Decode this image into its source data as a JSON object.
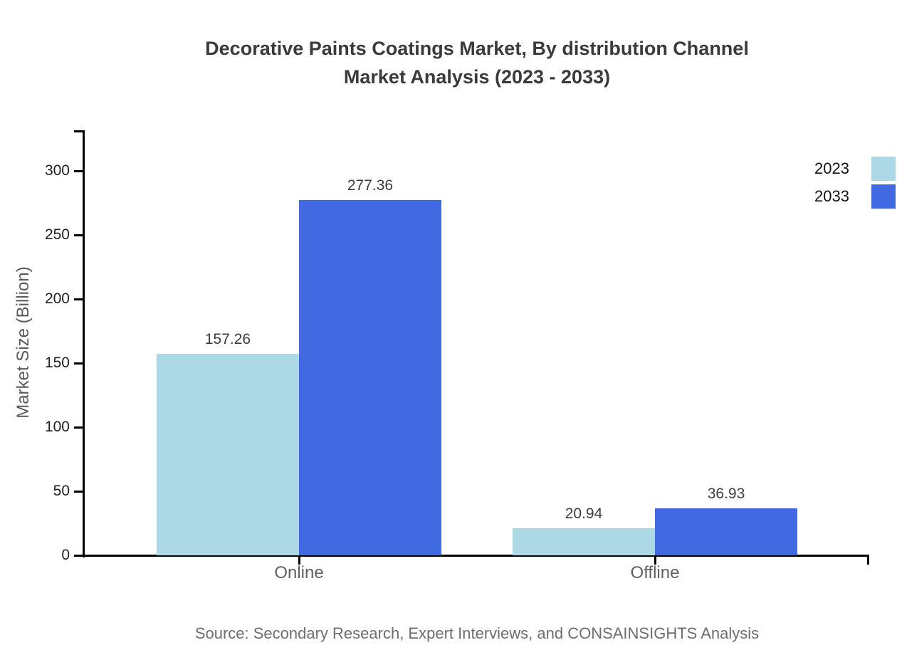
{
  "title": {
    "line1": "Decorative Paints Coatings Market, By distribution Channel",
    "line2": "Market Analysis (2023 - 2033)"
  },
  "source": "Source: Secondary Research, Expert Interviews, and CONSAINSIGHTS Analysis",
  "chart_data": {
    "type": "bar",
    "title": "Decorative Paints Coatings Market, By distribution Channel Market Analysis (2023 - 2033)",
    "categories": [
      "Online",
      "Offline"
    ],
    "series": [
      {
        "name": "2023",
        "color": "#ADD8E6",
        "values": [
          157.26,
          20.94
        ]
      },
      {
        "name": "2033",
        "color": "#4169E1",
        "values": [
          277.36,
          36.93
        ]
      }
    ],
    "xlabel": "",
    "ylabel": "Market Size (Billion)",
    "yticks": [
      0,
      50,
      100,
      150,
      200,
      250,
      300
    ],
    "ylim": [
      0,
      331.7
    ],
    "grid": false,
    "value_labels": true,
    "value_label_format": "2-decimals",
    "legend_position": "top-right",
    "axis_color": "#000000",
    "background_color": "#ffffff"
  }
}
